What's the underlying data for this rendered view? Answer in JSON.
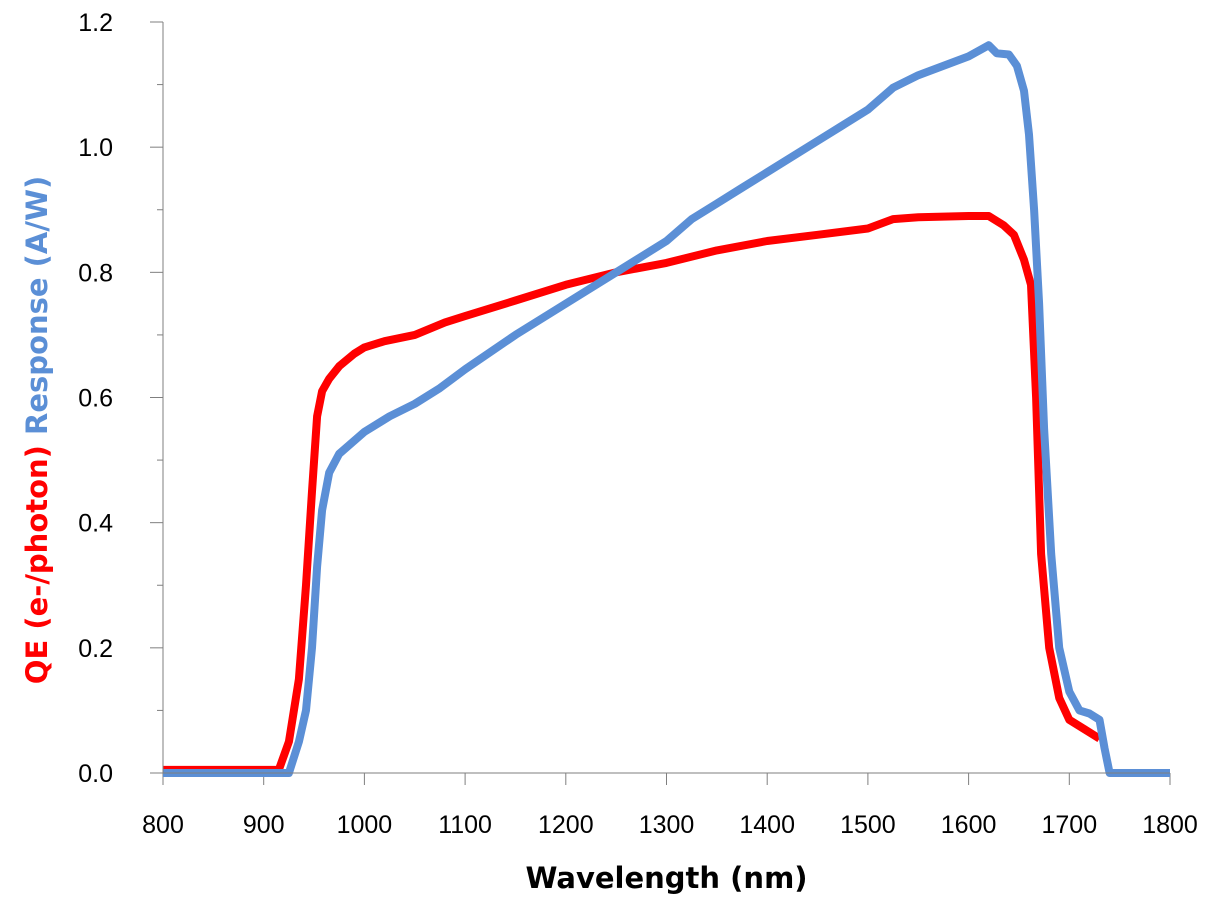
{
  "chart_data": {
    "type": "line",
    "title": "",
    "xlabel": "Wavelength (nm)",
    "ylabel_parts": [
      {
        "text": "QE (e-/photon)",
        "color": "#ff0000"
      },
      {
        "text": "Response (A/W)",
        "color": "#5b8fd6"
      }
    ],
    "xlim": [
      800,
      1800
    ],
    "ylim": [
      0,
      1.2
    ],
    "x_ticks": [
      "800",
      "900",
      "1000",
      "1100",
      "1200",
      "1300",
      "1400",
      "1500",
      "1600",
      "1700",
      "1800"
    ],
    "y_ticks": [
      "0.0",
      "0.2",
      "0.4",
      "0.6",
      "0.8",
      "1.0",
      "1.2"
    ],
    "grid": false,
    "legend": "none",
    "series": [
      {
        "id": "qe",
        "color": "#ff0000",
        "points": [
          [
            800,
            0.005
          ],
          [
            915,
            0.005
          ],
          [
            925,
            0.05
          ],
          [
            935,
            0.15
          ],
          [
            942,
            0.3
          ],
          [
            948,
            0.45
          ],
          [
            953,
            0.57
          ],
          [
            958,
            0.61
          ],
          [
            965,
            0.63
          ],
          [
            975,
            0.65
          ],
          [
            990,
            0.67
          ],
          [
            1000,
            0.68
          ],
          [
            1020,
            0.69
          ],
          [
            1050,
            0.7
          ],
          [
            1080,
            0.72
          ],
          [
            1100,
            0.73
          ],
          [
            1150,
            0.755
          ],
          [
            1200,
            0.78
          ],
          [
            1250,
            0.8
          ],
          [
            1300,
            0.815
          ],
          [
            1350,
            0.835
          ],
          [
            1400,
            0.85
          ],
          [
            1450,
            0.86
          ],
          [
            1500,
            0.87
          ],
          [
            1525,
            0.885
          ],
          [
            1550,
            0.888
          ],
          [
            1600,
            0.89
          ],
          [
            1620,
            0.89
          ],
          [
            1635,
            0.875
          ],
          [
            1645,
            0.86
          ],
          [
            1655,
            0.82
          ],
          [
            1662,
            0.78
          ],
          [
            1667,
            0.6
          ],
          [
            1672,
            0.35
          ],
          [
            1680,
            0.2
          ],
          [
            1690,
            0.12
          ],
          [
            1700,
            0.085
          ],
          [
            1715,
            0.07
          ],
          [
            1730,
            0.055
          ]
        ]
      },
      {
        "id": "response",
        "color": "#5b8fd6",
        "points": [
          [
            800,
            0.0
          ],
          [
            925,
            0.0
          ],
          [
            935,
            0.05
          ],
          [
            942,
            0.1
          ],
          [
            948,
            0.2
          ],
          [
            953,
            0.33
          ],
          [
            958,
            0.42
          ],
          [
            965,
            0.48
          ],
          [
            975,
            0.51
          ],
          [
            1000,
            0.545
          ],
          [
            1025,
            0.57
          ],
          [
            1050,
            0.59
          ],
          [
            1075,
            0.615
          ],
          [
            1100,
            0.645
          ],
          [
            1150,
            0.7
          ],
          [
            1200,
            0.75
          ],
          [
            1250,
            0.8
          ],
          [
            1300,
            0.85
          ],
          [
            1325,
            0.885
          ],
          [
            1350,
            0.91
          ],
          [
            1375,
            0.935
          ],
          [
            1400,
            0.96
          ],
          [
            1450,
            1.01
          ],
          [
            1475,
            1.035
          ],
          [
            1500,
            1.06
          ],
          [
            1525,
            1.095
          ],
          [
            1550,
            1.115
          ],
          [
            1600,
            1.145
          ],
          [
            1620,
            1.163
          ],
          [
            1628,
            1.15
          ],
          [
            1640,
            1.148
          ],
          [
            1648,
            1.13
          ],
          [
            1655,
            1.09
          ],
          [
            1660,
            1.02
          ],
          [
            1665,
            0.9
          ],
          [
            1670,
            0.75
          ],
          [
            1675,
            0.55
          ],
          [
            1682,
            0.35
          ],
          [
            1690,
            0.2
          ],
          [
            1700,
            0.13
          ],
          [
            1710,
            0.1
          ],
          [
            1720,
            0.095
          ],
          [
            1730,
            0.085
          ],
          [
            1735,
            0.04
          ],
          [
            1740,
            0.0
          ],
          [
            1800,
            0.0
          ]
        ]
      }
    ]
  }
}
